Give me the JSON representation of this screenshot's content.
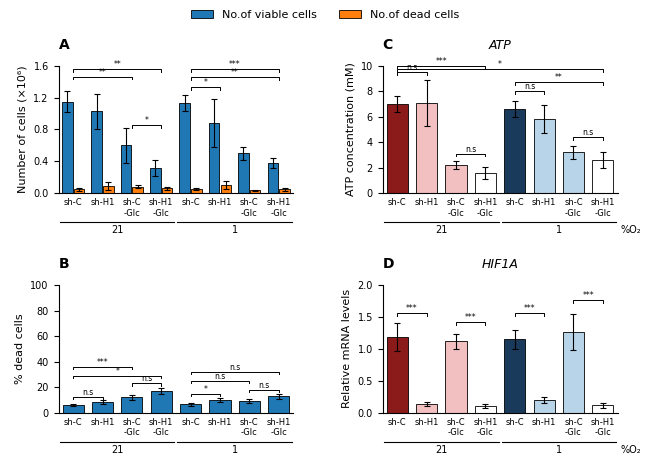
{
  "chart_data": [
    {
      "type": "bar",
      "title": "A",
      "ylabel": "Number of cells (×10⁶)",
      "categories": [
        "sh-C",
        "sh-H1",
        "sh-C\n-Glc",
        "sh-H1\n-Glc",
        "sh-C",
        "sh-H1",
        "sh-C\n-Glc",
        "sh-H1\n-Glc"
      ],
      "section_labels": [
        "21",
        "1"
      ],
      "series": [
        {
          "name": "No.of viable cells",
          "values": [
            1.15,
            1.03,
            0.6,
            0.32,
            1.13,
            0.88,
            0.5,
            0.38
          ],
          "errors": [
            0.13,
            0.22,
            0.22,
            0.1,
            0.1,
            0.3,
            0.08,
            0.06
          ]
        },
        {
          "name": "No.of dead cells",
          "values": [
            0.048,
            0.09,
            0.08,
            0.06,
            0.05,
            0.1,
            0.035,
            0.05
          ],
          "errors": [
            0.015,
            0.045,
            0.02,
            0.015,
            0.015,
            0.05,
            0.01,
            0.018
          ]
        }
      ],
      "ylim": [
        0,
        1.6
      ],
      "yticks": [
        {
          "value": 0,
          "label": "0.0"
        },
        0.4,
        0.8,
        1.2,
        1.6
      ],
      "legend": "upper center",
      "annotations": [
        {
          "x1": 0,
          "x2": 2,
          "y": 1.43,
          "label": "**"
        },
        {
          "x1": 0,
          "x2": 3,
          "y": 1.52,
          "label": "**"
        },
        {
          "x1": 2,
          "x2": 3,
          "y": 0.82,
          "label": "*"
        },
        {
          "x1": 4,
          "x2": 7,
          "y": 1.52,
          "label": "***"
        },
        {
          "x1": 4,
          "x2": 5,
          "y": 1.3,
          "label": "*"
        },
        {
          "x1": 4,
          "x2": 7,
          "y": 1.42,
          "label": "**"
        }
      ]
    },
    {
      "type": "bar",
      "title": "B",
      "ylabel": "% dead cells",
      "categories": [
        "sh-C",
        "sh-H1",
        "sh-C\n-Glc",
        "sh-H1\n-Glc",
        "sh-C",
        "sh-H1",
        "sh-C\n-Glc",
        "sh-H1\n-Glc"
      ],
      "section_labels": [
        "21",
        "1"
      ],
      "series": [
        {
          "values": [
            6.0,
            8.5,
            12.0,
            17.0,
            6.5,
            10.0,
            9.5,
            13.0
          ],
          "errors": [
            1.0,
            1.5,
            2.0,
            2.5,
            1.0,
            1.5,
            1.5,
            2.0
          ]
        }
      ],
      "ylim": [
        0,
        100
      ],
      "yticks": [
        0,
        20,
        40,
        60,
        80,
        100
      ],
      "annotations": [
        {
          "x1": 0,
          "x2": 1,
          "y": 10.5,
          "label": "n.s"
        },
        {
          "x1": 0,
          "x2": 2,
          "y": 34,
          "label": "***"
        },
        {
          "x1": 0,
          "x2": 3,
          "y": 27,
          "label": "*"
        },
        {
          "x1": 2,
          "x2": 3,
          "y": 21,
          "label": "n.s"
        },
        {
          "x1": 4,
          "x2": 5,
          "y": 13,
          "label": "*"
        },
        {
          "x1": 4,
          "x2": 6,
          "y": 23,
          "label": "n.s"
        },
        {
          "x1": 4,
          "x2": 7,
          "y": 30,
          "label": "n.s"
        },
        {
          "x1": 6,
          "x2": 7,
          "y": 16,
          "label": "n.s"
        }
      ]
    },
    {
      "type": "bar",
      "title": "C",
      "subtitle": "ATP",
      "ylabel": "ATP concentration (mM)",
      "categories": [
        "sh-C",
        "sh-H1",
        "sh-C\n-Glc",
        "sh-H1\n-Glc",
        "sh-C",
        "sh-H1",
        "sh-C\n-Glc",
        "sh-H1\n-Glc"
      ],
      "section_labels": [
        "21",
        "1"
      ],
      "section_axis_label": "%O₂",
      "series": [
        {
          "values": [
            7.0,
            7.05,
            2.2,
            1.6,
            6.6,
            5.8,
            3.2,
            2.6
          ],
          "errors": [
            0.65,
            1.8,
            0.3,
            0.45,
            0.6,
            1.1,
            0.5,
            0.6
          ],
          "colors": [
            "#8b1a1a",
            "#f2c0c0",
            "#f2c0c0",
            "#ffffff",
            "#1a3a5c",
            "#b8d4e8",
            "#b8d4e8",
            "#ffffff"
          ]
        }
      ],
      "ylim": [
        0,
        10
      ],
      "yticks": [
        0,
        2,
        4,
        6,
        8,
        10
      ],
      "annotations": [
        {
          "x1": 0,
          "x2": 1,
          "y": 9.3,
          "label": "n.s"
        },
        {
          "x1": 0,
          "x2": 3,
          "y": 9.8,
          "label": "***"
        },
        {
          "x1": 2,
          "x2": 3,
          "y": 2.9,
          "label": "n.s"
        },
        {
          "x1": 4,
          "x2": 5,
          "y": 7.8,
          "label": "n.s"
        },
        {
          "x1": 4,
          "x2": 7,
          "y": 8.5,
          "label": "**"
        },
        {
          "x1": 0,
          "x2": 7,
          "y": 9.5,
          "label": "*"
        },
        {
          "x1": 6,
          "x2": 7,
          "y": 4.2,
          "label": "n.s"
        }
      ]
    },
    {
      "type": "bar",
      "title": "D",
      "subtitle": "HIF1A",
      "ylabel": "Relative mRNA levels",
      "categories": [
        "sh-C",
        "sh-H1",
        "sh-C\n-Glc",
        "sh-H1\n-Glc",
        "sh-C",
        "sh-H1",
        "sh-C\n-Glc",
        "sh-H1\n-Glc"
      ],
      "section_labels": [
        "21",
        "1"
      ],
      "section_axis_label": "%O₂",
      "series": [
        {
          "values": [
            1.18,
            0.14,
            1.12,
            0.11,
            1.15,
            0.2,
            1.27,
            0.12
          ],
          "errors": [
            0.22,
            0.03,
            0.12,
            0.03,
            0.15,
            0.04,
            0.28,
            0.04
          ],
          "colors": [
            "#8b1a1a",
            "#f2c0c0",
            "#f2c0c0",
            "#ffffff",
            "#1a3a5c",
            "#b8d4e8",
            "#b8d4e8",
            "#ffffff"
          ]
        }
      ],
      "ylim": [
        0,
        2.0
      ],
      "yticks": [
        {
          "value": 0,
          "label": "0.0"
        },
        0.5,
        1.0,
        1.5,
        2.0
      ],
      "annotations": [
        {
          "x1": 0,
          "x2": 1,
          "y": 1.52,
          "label": "***"
        },
        {
          "x1": 2,
          "x2": 3,
          "y": 1.38,
          "label": "***"
        },
        {
          "x1": 4,
          "x2": 5,
          "y": 1.52,
          "label": "***"
        },
        {
          "x1": 6,
          "x2": 7,
          "y": 1.72,
          "label": "***"
        }
      ]
    }
  ]
}
